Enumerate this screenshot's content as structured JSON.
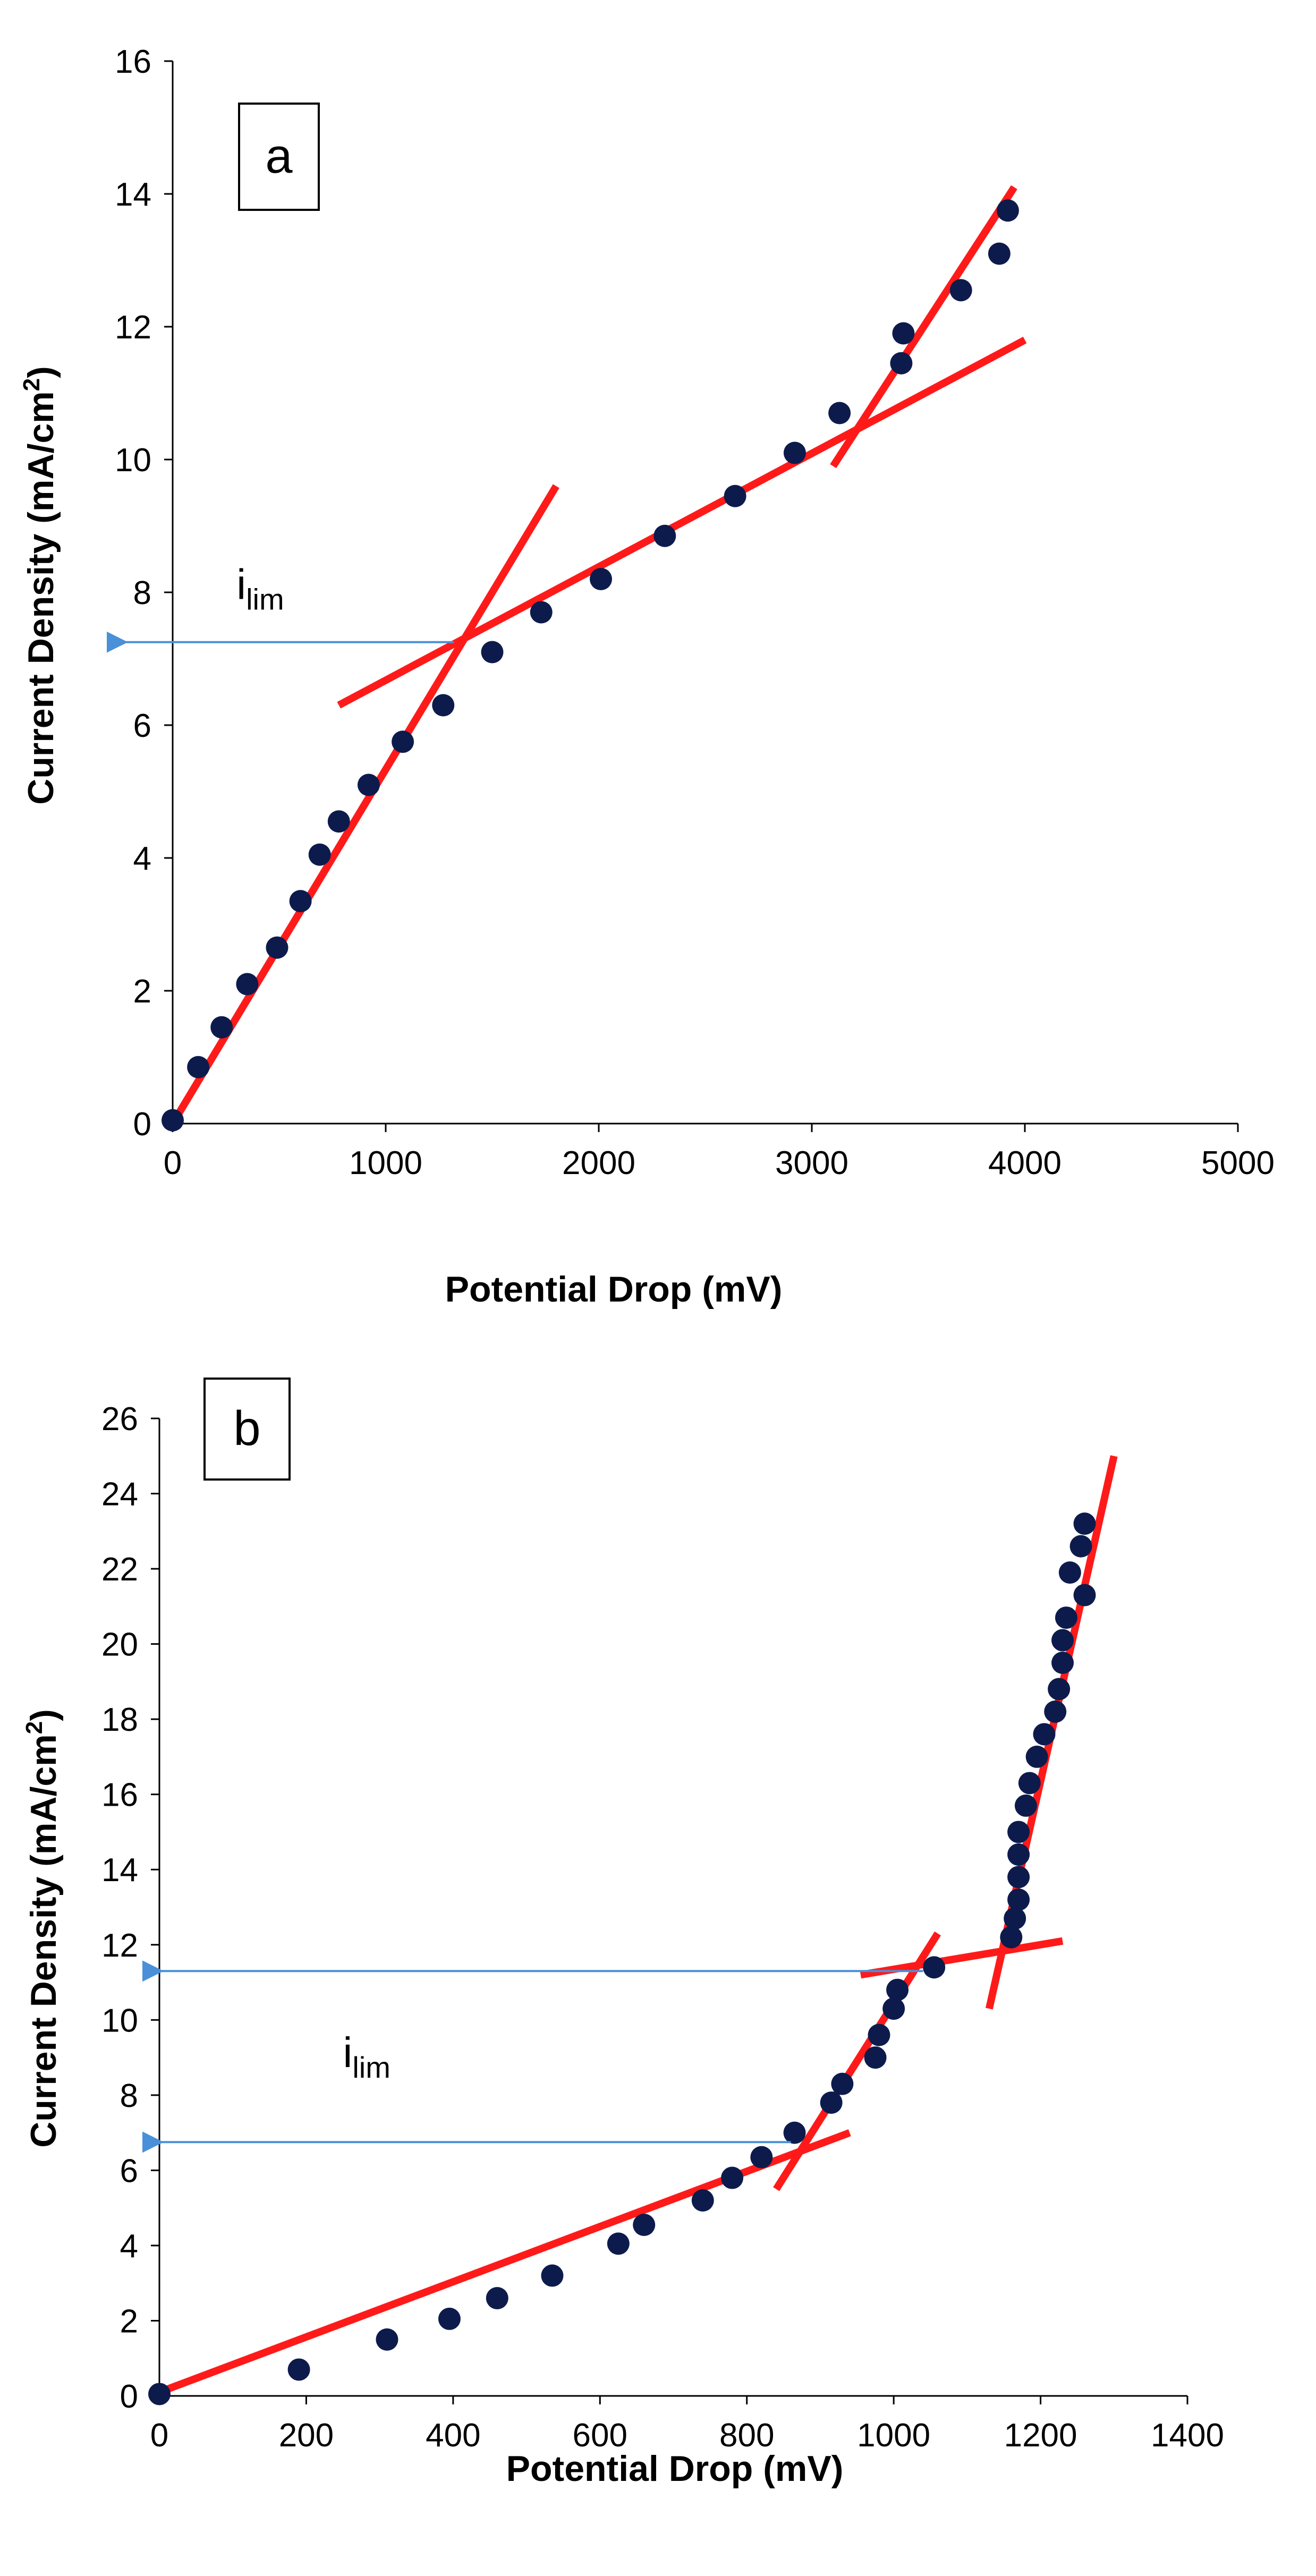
{
  "chart_data": [
    {
      "type": "scatter",
      "panel_label": "a",
      "title": "",
      "xlabel": "Potential Drop (mV)",
      "ylabel_main": "Current Density (mA/cm",
      "ylabel_sup": "2",
      "ylabel_close": ")",
      "xlim": [
        0,
        5000
      ],
      "ylim": [
        0,
        16
      ],
      "x_ticks": [
        0,
        1000,
        2000,
        3000,
        4000,
        5000
      ],
      "y_ticks": [
        0,
        2,
        4,
        6,
        8,
        10,
        12,
        14,
        16
      ],
      "grid": false,
      "marker_color": "#0d1b4c",
      "fit_color": "#ff1a1a",
      "arrow_color": "#4a90d9",
      "points": [
        {
          "x": 0,
          "y": 0.05
        },
        {
          "x": 120,
          "y": 0.85
        },
        {
          "x": 230,
          "y": 1.45
        },
        {
          "x": 350,
          "y": 2.1
        },
        {
          "x": 490,
          "y": 2.65
        },
        {
          "x": 600,
          "y": 3.35
        },
        {
          "x": 690,
          "y": 4.05
        },
        {
          "x": 780,
          "y": 4.55
        },
        {
          "x": 920,
          "y": 5.1
        },
        {
          "x": 1080,
          "y": 5.75
        },
        {
          "x": 1270,
          "y": 6.3
        },
        {
          "x": 1500,
          "y": 7.1
        },
        {
          "x": 1730,
          "y": 7.7
        },
        {
          "x": 2010,
          "y": 8.2
        },
        {
          "x": 2310,
          "y": 8.85
        },
        {
          "x": 2640,
          "y": 9.45
        },
        {
          "x": 2920,
          "y": 10.1
        },
        {
          "x": 3130,
          "y": 10.7
        },
        {
          "x": 3420,
          "y": 11.45
        },
        {
          "x": 3430,
          "y": 11.9
        },
        {
          "x": 3700,
          "y": 12.55
        },
        {
          "x": 3880,
          "y": 13.1
        },
        {
          "x": 3920,
          "y": 13.75
        }
      ],
      "fit_lines": [
        {
          "x1": 0,
          "y1": 0,
          "x2": 1800,
          "y2": 9.6
        },
        {
          "x1": 780,
          "y1": 6.3,
          "x2": 4000,
          "y2": 11.8
        },
        {
          "x1": 3100,
          "y1": 9.9,
          "x2": 3950,
          "y2": 14.1
        }
      ],
      "arrows": [
        {
          "from_x": 1320,
          "to_x": -230,
          "y": 7.25
        }
      ],
      "annotation_main": "i",
      "annotation_sub": "lim",
      "annotation_at": {
        "x": 300,
        "y": 7.9
      }
    },
    {
      "type": "scatter",
      "panel_label": "b",
      "title": "",
      "xlabel": "Potential Drop (mV)",
      "ylabel_main": "Current Density (mA/cm",
      "ylabel_sup": "2",
      "ylabel_close": ")",
      "xlim": [
        0,
        1400
      ],
      "ylim": [
        0,
        26
      ],
      "x_ticks": [
        0,
        200,
        400,
        600,
        800,
        1000,
        1200,
        1400
      ],
      "y_ticks": [
        0,
        2,
        4,
        6,
        8,
        10,
        12,
        14,
        16,
        18,
        20,
        22,
        24,
        26
      ],
      "grid": false,
      "marker_color": "#0d1b4c",
      "fit_color": "#ff1a1a",
      "arrow_color": "#4a90d9",
      "points": [
        {
          "x": 0,
          "y": 0.05
        },
        {
          "x": 190,
          "y": 0.7
        },
        {
          "x": 310,
          "y": 1.5
        },
        {
          "x": 395,
          "y": 2.05
        },
        {
          "x": 460,
          "y": 2.6
        },
        {
          "x": 535,
          "y": 3.2
        },
        {
          "x": 625,
          "y": 4.05
        },
        {
          "x": 660,
          "y": 4.55
        },
        {
          "x": 740,
          "y": 5.2
        },
        {
          "x": 780,
          "y": 5.8
        },
        {
          "x": 820,
          "y": 6.35
        },
        {
          "x": 865,
          "y": 7.0
        },
        {
          "x": 915,
          "y": 7.8
        },
        {
          "x": 930,
          "y": 8.3
        },
        {
          "x": 975,
          "y": 9.0
        },
        {
          "x": 980,
          "y": 9.6
        },
        {
          "x": 1000,
          "y": 10.3
        },
        {
          "x": 1005,
          "y": 10.8
        },
        {
          "x": 1055,
          "y": 11.4
        },
        {
          "x": 1160,
          "y": 12.2
        },
        {
          "x": 1165,
          "y": 12.7
        },
        {
          "x": 1170,
          "y": 13.2
        },
        {
          "x": 1170,
          "y": 13.8
        },
        {
          "x": 1170,
          "y": 14.4
        },
        {
          "x": 1170,
          "y": 15.0
        },
        {
          "x": 1180,
          "y": 15.7
        },
        {
          "x": 1185,
          "y": 16.3
        },
        {
          "x": 1195,
          "y": 17.0
        },
        {
          "x": 1205,
          "y": 17.6
        },
        {
          "x": 1220,
          "y": 18.2
        },
        {
          "x": 1225,
          "y": 18.8
        },
        {
          "x": 1230,
          "y": 19.5
        },
        {
          "x": 1230,
          "y": 20.1
        },
        {
          "x": 1235,
          "y": 20.7
        },
        {
          "x": 1240,
          "y": 21.9
        },
        {
          "x": 1260,
          "y": 21.3
        },
        {
          "x": 1255,
          "y": 22.6
        },
        {
          "x": 1260,
          "y": 23.2
        }
      ],
      "fit_lines": [
        {
          "x1": 0,
          "y1": 0.1,
          "x2": 940,
          "y2": 7.0
        },
        {
          "x1": 840,
          "y1": 5.5,
          "x2": 1060,
          "y2": 12.3
        },
        {
          "x1": 955,
          "y1": 11.2,
          "x2": 1230,
          "y2": 12.1
        },
        {
          "x1": 1130,
          "y1": 10.3,
          "x2": 1300,
          "y2": 25.0
        }
      ],
      "arrows": [
        {
          "from_x": 1040,
          "to_x": 0,
          "y": 11.3
        },
        {
          "from_x": 860,
          "to_x": 0,
          "y": 6.75
        }
      ],
      "annotation_main": "i",
      "annotation_sub": "lim",
      "annotation_at": {
        "x": 250,
        "y": 8.75
      }
    }
  ]
}
